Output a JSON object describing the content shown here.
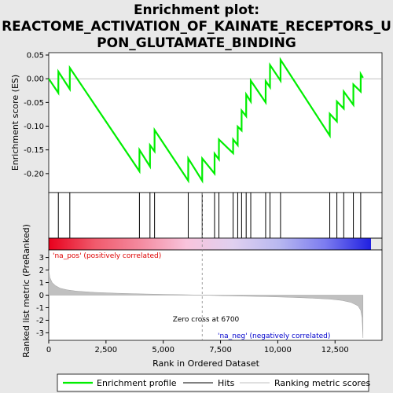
{
  "chart_data": {
    "type": "line",
    "title_lines": [
      "Enrichment plot:",
      "REACTOME_ACTIVATION_OF_KAINATE_RECEPTORS_U",
      "PON_GLUTAMATE_BINDING"
    ],
    "panels": {
      "es": {
        "ylabel": "Enrichment score (ES)",
        "ylim": [
          -0.24,
          0.055
        ],
        "yticks": [
          0.05,
          0.0,
          -0.05,
          -0.1,
          -0.15,
          -0.2
        ],
        "ytick_labels": [
          "0.05",
          "0.00",
          "-0.05",
          "-0.10",
          "-0.15",
          "-0.20"
        ],
        "series": [
          {
            "name": "Enrichment profile",
            "color": "#00ee00",
            "x": [
              0,
              420,
              421,
              920,
              921,
              3960,
              3961,
              4420,
              4421,
              4620,
              4621,
              6090,
              6091,
              6700,
              6701,
              7240,
              7241,
              7430,
              7431,
              8050,
              8051,
              8250,
              8251,
              8420,
              8421,
              8620,
              8621,
              8820,
              8821,
              9470,
              9471,
              9660,
              9661,
              10120,
              10121,
              12270,
              12271,
              12580,
              12581,
              12880,
              12881,
              13300,
              13301,
              13620,
              13621,
              13720
            ],
            "y": [
              0.0,
              -0.03,
              0.015,
              -0.022,
              0.023,
              -0.195,
              -0.15,
              -0.185,
              -0.14,
              -0.153,
              -0.108,
              -0.215,
              -0.168,
              -0.215,
              -0.168,
              -0.2,
              -0.158,
              -0.17,
              -0.128,
              -0.157,
              -0.128,
              -0.14,
              -0.101,
              -0.109,
              -0.067,
              -0.079,
              -0.033,
              -0.048,
              -0.004,
              -0.05,
              -0.005,
              -0.018,
              0.029,
              -0.004,
              0.04,
              -0.12,
              -0.074,
              -0.09,
              -0.048,
              -0.063,
              -0.027,
              -0.055,
              -0.012,
              -0.027,
              0.01,
              0.002
            ]
          }
        ]
      },
      "hits": {
        "positions": [
          420,
          920,
          3960,
          4420,
          4620,
          6090,
          6700,
          7240,
          7430,
          8050,
          8250,
          8420,
          8620,
          8820,
          9470,
          9660,
          10120,
          12270,
          12580,
          12880,
          13300,
          13620
        ]
      },
      "gradient": {
        "stops": [
          "#e8001c",
          "#f05a6c",
          "#f48ba0",
          "#f8c4dc",
          "#e0d0f0",
          "#b8b8f0",
          "#7c7cf0",
          "#2020e0"
        ]
      },
      "metric": {
        "ylabel": "Ranked list metric (PreRanked)",
        "ylim": [
          -3.6,
          3.6
        ],
        "yticks": [
          3,
          2,
          1,
          0,
          -1,
          -2,
          -3
        ],
        "ytick_labels": [
          "3",
          "2",
          "1",
          "0",
          "-1",
          "-2",
          "-3"
        ],
        "x": [
          0,
          50,
          150,
          300,
          500,
          800,
          1200,
          2000,
          3000,
          4000,
          5000,
          6000,
          6700,
          7500,
          8500,
          9500,
          10500,
          11500,
          12300,
          12800,
          13200,
          13500,
          13620,
          13680,
          13700,
          13720
        ],
        "y": [
          2.0,
          1.4,
          1.0,
          0.75,
          0.55,
          0.42,
          0.32,
          0.22,
          0.15,
          0.1,
          0.06,
          0.03,
          0.0,
          -0.04,
          -0.08,
          -0.12,
          -0.17,
          -0.24,
          -0.32,
          -0.42,
          -0.58,
          -0.85,
          -1.2,
          -1.8,
          -2.6,
          -3.4
        ],
        "fill_color": "#c0c0c0",
        "zero_cross_label": "Zero cross at 6700",
        "zero_cross": 6700,
        "pos_label": "'na_pos' (positively correlated)",
        "neg_label": "'na_neg' (negatively correlated)"
      }
    },
    "x_axis": {
      "xlabel": "Rank in Ordered Dataset",
      "xlim": [
        0,
        14550
      ],
      "xticks": [
        0,
        2500,
        5000,
        7500,
        10000,
        12500
      ],
      "xtick_labels": [
        "0",
        "2,500",
        "5,000",
        "7,500",
        "10,000",
        "12,500"
      ]
    },
    "legend": {
      "placement": "bottom",
      "items": [
        {
          "label": "Enrichment profile",
          "color": "#00ee00"
        },
        {
          "label": "Hits",
          "color": "#000000"
        },
        {
          "label": "Ranking metric scores",
          "color": "#c0c0c0"
        }
      ]
    }
  }
}
